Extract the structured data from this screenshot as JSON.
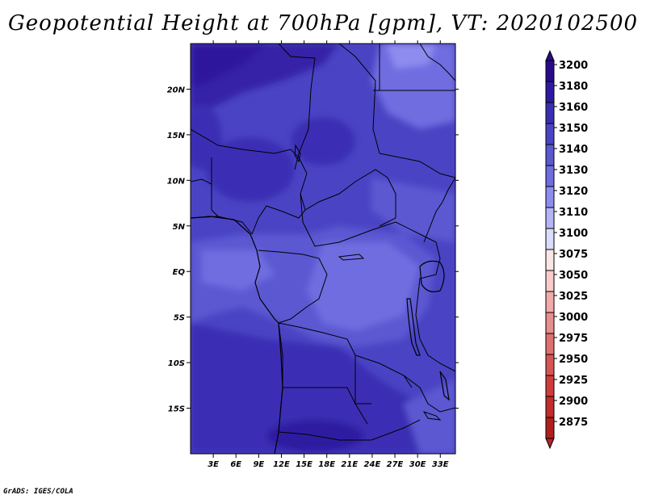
{
  "title": "Geopotential Height at 700hPa [gpm], VT: 2020102500",
  "footer": "GrADS: IGES/COLA",
  "map": {
    "lon_range": [
      0,
      35
    ],
    "lat_range": [
      -20,
      25
    ],
    "lon_ticks": [
      {
        "value": 3,
        "label": "3E"
      },
      {
        "value": 6,
        "label": "6E"
      },
      {
        "value": 9,
        "label": "9E"
      },
      {
        "value": 12,
        "label": "12E"
      },
      {
        "value": 15,
        "label": "15E"
      },
      {
        "value": 18,
        "label": "18E"
      },
      {
        "value": 21,
        "label": "21E"
      },
      {
        "value": 24,
        "label": "24E"
      },
      {
        "value": 27,
        "label": "27E"
      },
      {
        "value": 30,
        "label": "30E"
      },
      {
        "value": 33,
        "label": "33E"
      }
    ],
    "lat_ticks": [
      {
        "value": 20,
        "label": "20N"
      },
      {
        "value": 15,
        "label": "15N"
      },
      {
        "value": 10,
        "label": "10N"
      },
      {
        "value": 5,
        "label": "5N"
      },
      {
        "value": 0,
        "label": "EQ"
      },
      {
        "value": -5,
        "label": "5S"
      },
      {
        "value": -10,
        "label": "10S"
      },
      {
        "value": -15,
        "label": "15S"
      }
    ]
  },
  "colorbar": {
    "levels": [
      {
        "label": "3200",
        "color": "#2a0a8c"
      },
      {
        "label": "3180",
        "color": "#2e1aa0"
      },
      {
        "label": "3160",
        "color": "#3a2fb4"
      },
      {
        "label": "3150",
        "color": "#4a44c4"
      },
      {
        "label": "3140",
        "color": "#5b58d2"
      },
      {
        "label": "3130",
        "color": "#6f6de0"
      },
      {
        "label": "3120",
        "color": "#8f8cf0"
      },
      {
        "label": "3110",
        "color": "#b6b4f8"
      },
      {
        "label": "3100",
        "color": "#dcdcfc"
      },
      {
        "label": "3075",
        "color": "#fbe6e6"
      },
      {
        "label": "3050",
        "color": "#f8cccc"
      },
      {
        "label": "3025",
        "color": "#f2aaaa"
      },
      {
        "label": "3000",
        "color": "#e98e8e"
      },
      {
        "label": "2975",
        "color": "#e07070"
      },
      {
        "label": "2950",
        "color": "#d85454"
      },
      {
        "label": "2925",
        "color": "#d03c3c"
      },
      {
        "label": "2900",
        "color": "#c22c2c"
      },
      {
        "label": "2875",
        "color": "#b01e1e"
      }
    ],
    "bottom_color": "#b52424"
  }
}
